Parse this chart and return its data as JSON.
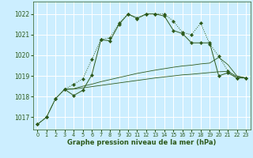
{
  "bg_color": "#cceeff",
  "grid_color": "#ffffff",
  "line_color": "#2d5a1b",
  "xlabel": "Graphe pression niveau de la mer (hPa)",
  "xlim": [
    -0.5,
    23.5
  ],
  "ylim": [
    1016.4,
    1022.6
  ],
  "yticks": [
    1017,
    1018,
    1019,
    1020,
    1021,
    1022
  ],
  "xticks": [
    0,
    1,
    2,
    3,
    4,
    5,
    6,
    7,
    8,
    9,
    10,
    11,
    12,
    13,
    14,
    15,
    16,
    17,
    18,
    19,
    20,
    21,
    22,
    23
  ],
  "line_dotted": {
    "x": [
      0,
      1,
      2,
      3,
      4,
      5,
      6,
      7,
      8,
      9,
      10,
      11,
      12,
      13,
      14,
      15,
      16,
      17,
      18,
      19,
      20,
      21,
      22,
      23
    ],
    "y": [
      1016.65,
      1017.0,
      1017.9,
      1018.35,
      1018.6,
      1018.85,
      1019.8,
      1020.75,
      1020.85,
      1021.55,
      1022.0,
      1021.75,
      1022.0,
      1022.0,
      1022.0,
      1021.65,
      1021.1,
      1021.0,
      1021.55,
      1020.55,
      1019.95,
      1019.25,
      1018.9,
      1018.9
    ]
  },
  "line_solid": {
    "x": [
      0,
      1,
      2,
      3,
      4,
      5,
      6,
      7,
      8,
      9,
      10,
      11,
      12,
      13,
      14,
      15,
      16,
      17,
      18,
      19,
      20,
      21,
      22,
      23
    ],
    "y": [
      1016.65,
      1017.0,
      1017.9,
      1018.35,
      1018.05,
      1018.3,
      1019.05,
      1020.75,
      1020.7,
      1021.5,
      1022.0,
      1021.8,
      1022.0,
      1022.0,
      1021.9,
      1021.2,
      1021.05,
      1020.6,
      1020.6,
      1020.6,
      1019.0,
      1019.15,
      1018.9,
      1018.9
    ]
  },
  "line_flat1": {
    "x": [
      3,
      4,
      5,
      6,
      7,
      8,
      9,
      10,
      11,
      12,
      13,
      14,
      15,
      16,
      17,
      18,
      19,
      20,
      21,
      22,
      23
    ],
    "y": [
      1018.35,
      1018.38,
      1018.5,
      1018.6,
      1018.72,
      1018.82,
      1018.92,
      1019.02,
      1019.12,
      1019.2,
      1019.28,
      1019.35,
      1019.42,
      1019.48,
      1019.52,
      1019.58,
      1019.62,
      1019.9,
      1019.55,
      1019.0,
      1018.9
    ]
  },
  "line_flat2": {
    "x": [
      3,
      4,
      5,
      6,
      7,
      8,
      9,
      10,
      11,
      12,
      13,
      14,
      15,
      16,
      17,
      18,
      19,
      20,
      21,
      22,
      23
    ],
    "y": [
      1018.35,
      1018.36,
      1018.42,
      1018.48,
      1018.54,
      1018.6,
      1018.66,
      1018.72,
      1018.78,
      1018.84,
      1018.9,
      1018.95,
      1019.0,
      1019.05,
      1019.08,
      1019.12,
      1019.16,
      1019.2,
      1019.22,
      1018.97,
      1018.9
    ]
  }
}
